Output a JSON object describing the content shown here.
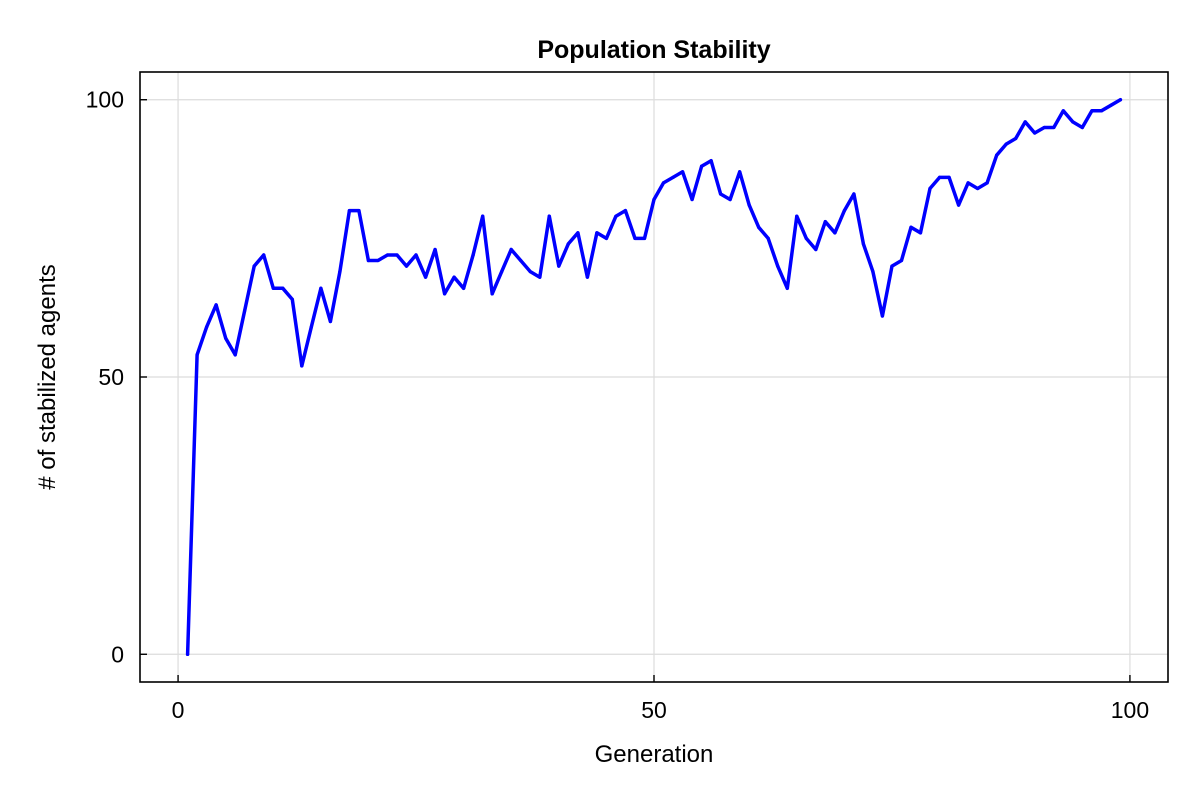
{
  "chart_data": {
    "type": "line",
    "title": "Population Stability",
    "xlabel": "Generation",
    "ylabel": "# of stabilized agents",
    "xlim": [
      -4,
      104
    ],
    "ylim": [
      -5,
      105
    ],
    "xticks": [
      0,
      50,
      100
    ],
    "yticks": [
      0,
      50,
      100
    ],
    "grid": true,
    "series": [
      {
        "color": "#0000ff",
        "x": [
          1,
          2,
          3,
          4,
          5,
          6,
          7,
          8,
          9,
          10,
          11,
          12,
          13,
          14,
          15,
          16,
          17,
          18,
          19,
          20,
          21,
          22,
          23,
          24,
          25,
          26,
          27,
          28,
          29,
          30,
          31,
          32,
          33,
          34,
          35,
          36,
          37,
          38,
          39,
          40,
          41,
          42,
          43,
          44,
          45,
          46,
          47,
          48,
          49,
          50,
          51,
          52,
          53,
          54,
          55,
          56,
          57,
          58,
          59,
          60,
          61,
          62,
          63,
          64,
          65,
          66,
          67,
          68,
          69,
          70,
          71,
          72,
          73,
          74,
          75,
          76,
          77,
          78,
          79,
          80,
          81,
          82,
          83,
          84,
          85,
          86,
          87,
          88,
          89,
          90,
          91,
          92,
          93,
          94,
          95,
          96,
          97,
          98,
          99
        ],
        "y": [
          0,
          54,
          59,
          63,
          57,
          54,
          62,
          70,
          72,
          66,
          66,
          64,
          52,
          59,
          66,
          60,
          69,
          80,
          80,
          71,
          71,
          72,
          72,
          70,
          72,
          68,
          73,
          65,
          68,
          66,
          72,
          79,
          65,
          69,
          73,
          71,
          69,
          68,
          79,
          70,
          74,
          76,
          68,
          76,
          75,
          79,
          80,
          75,
          75,
          82,
          85,
          86,
          87,
          82,
          88,
          89,
          83,
          82,
          87,
          81,
          77,
          75,
          70,
          66,
          79,
          75,
          73,
          78,
          76,
          80,
          83,
          74,
          69,
          61,
          70,
          71,
          77,
          76,
          84,
          86,
          86,
          81,
          85,
          84,
          85,
          90,
          92,
          93,
          96,
          94,
          95,
          95,
          98,
          96,
          95,
          98,
          98,
          99,
          100
        ]
      }
    ]
  }
}
